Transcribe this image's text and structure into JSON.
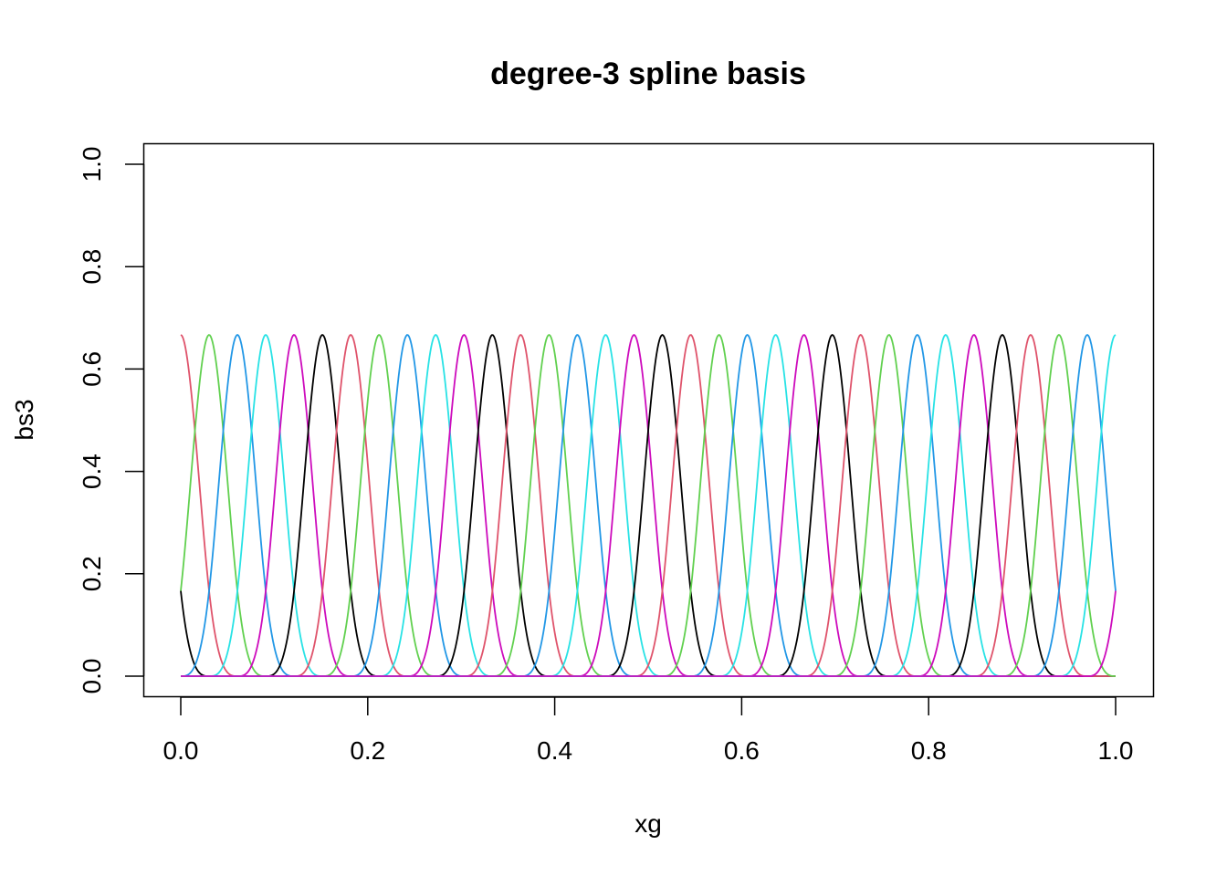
{
  "chart_data": {
    "type": "line",
    "title": "degree-3 spline basis",
    "xlabel": "xg",
    "ylabel": "bs3",
    "xlim": [
      0.0,
      1.0
    ],
    "ylim": [
      0.0,
      1.0
    ],
    "x_ticks": [
      "0.0",
      "0.2",
      "0.4",
      "0.6",
      "0.8",
      "1.0"
    ],
    "y_ticks": [
      "0.0",
      "0.2",
      "0.4",
      "0.6",
      "0.8",
      "1.0"
    ],
    "grid": false,
    "legend": "none",
    "basis": {
      "degree": 3,
      "n_basis": 36,
      "knot_spacing": 0.030303,
      "first_center": 0.0,
      "peak_value": 0.667,
      "value_at_neighbor_knot": 0.167
    },
    "palette": [
      "#000000",
      "#DF536B",
      "#61D04F",
      "#2297E6",
      "#28E2E5",
      "#CD0BBC"
    ]
  }
}
